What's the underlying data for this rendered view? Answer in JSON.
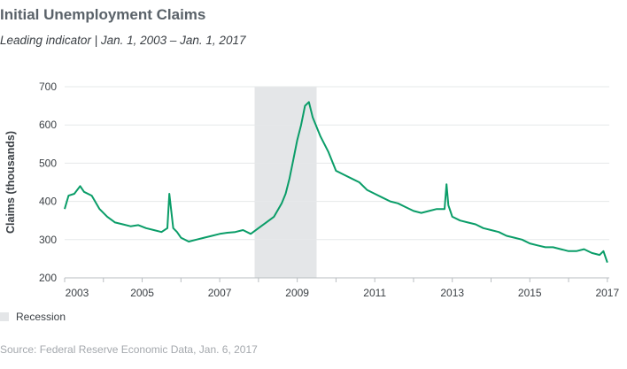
{
  "title": "Initial Unemployment Claims",
  "subtitle": "Leading indicator  |  Jan. 1, 2003 – Jan. 1, 2017",
  "legend": {
    "recession_label": "Recession"
  },
  "source": "Source: Federal Reserve Economic Data, Jan. 6, 2017",
  "colors": {
    "line": "#0a9d68",
    "recession": "#e4e6e8",
    "grid": "#e6e8ea",
    "text": "#3a3f44"
  },
  "chart_data": {
    "type": "line",
    "title": "Initial Unemployment Claims",
    "xlabel": "",
    "ylabel": "Claims (thousands)",
    "xlim": [
      2003.0,
      2017.05
    ],
    "ylim": [
      200,
      700
    ],
    "yticks": [
      200,
      300,
      400,
      500,
      600,
      700
    ],
    "xticks": [
      "2003",
      "2005",
      "2007",
      "2009",
      "2011",
      "2013",
      "2015",
      "2017"
    ],
    "grid": true,
    "legend_position": "bottom-left",
    "recession": {
      "start": 2007.9,
      "end": 2009.5,
      "label": "Recession"
    },
    "series": [
      {
        "x": [
          2003.0,
          2003.1,
          2003.25,
          2003.4,
          2003.5,
          2003.7,
          2003.9,
          2004.1,
          2004.3,
          2004.5,
          2004.7,
          2004.9,
          2005.1,
          2005.3,
          2005.5,
          2005.65,
          2005.7,
          2005.8,
          2005.9,
          2006.0,
          2006.2,
          2006.4,
          2006.6,
          2006.8,
          2007.0,
          2007.2,
          2007.4,
          2007.6,
          2007.8,
          2008.0,
          2008.2,
          2008.4,
          2008.6,
          2008.7,
          2008.8,
          2008.9,
          2009.0,
          2009.1,
          2009.2,
          2009.3,
          2009.4,
          2009.6,
          2009.8,
          2010.0,
          2010.2,
          2010.4,
          2010.6,
          2010.8,
          2011.0,
          2011.2,
          2011.4,
          2011.6,
          2011.8,
          2012.0,
          2012.2,
          2012.4,
          2012.6,
          2012.8,
          2012.85,
          2012.9,
          2013.0,
          2013.2,
          2013.4,
          2013.6,
          2013.8,
          2014.0,
          2014.2,
          2014.4,
          2014.6,
          2014.8,
          2015.0,
          2015.2,
          2015.4,
          2015.6,
          2015.8,
          2016.0,
          2016.2,
          2016.4,
          2016.6,
          2016.8,
          2016.9,
          2017.0
        ],
        "values": [
          380,
          415,
          420,
          440,
          425,
          415,
          380,
          360,
          345,
          340,
          335,
          338,
          330,
          325,
          320,
          330,
          420,
          330,
          320,
          305,
          295,
          300,
          305,
          310,
          315,
          318,
          320,
          325,
          315,
          330,
          345,
          360,
          395,
          420,
          460,
          510,
          560,
          600,
          650,
          660,
          620,
          570,
          530,
          480,
          470,
          460,
          450,
          430,
          420,
          410,
          400,
          395,
          385,
          375,
          370,
          375,
          380,
          380,
          445,
          390,
          360,
          350,
          345,
          340,
          330,
          325,
          320,
          310,
          305,
          300,
          290,
          285,
          280,
          280,
          275,
          270,
          270,
          275,
          265,
          260,
          270,
          240
        ]
      }
    ]
  }
}
